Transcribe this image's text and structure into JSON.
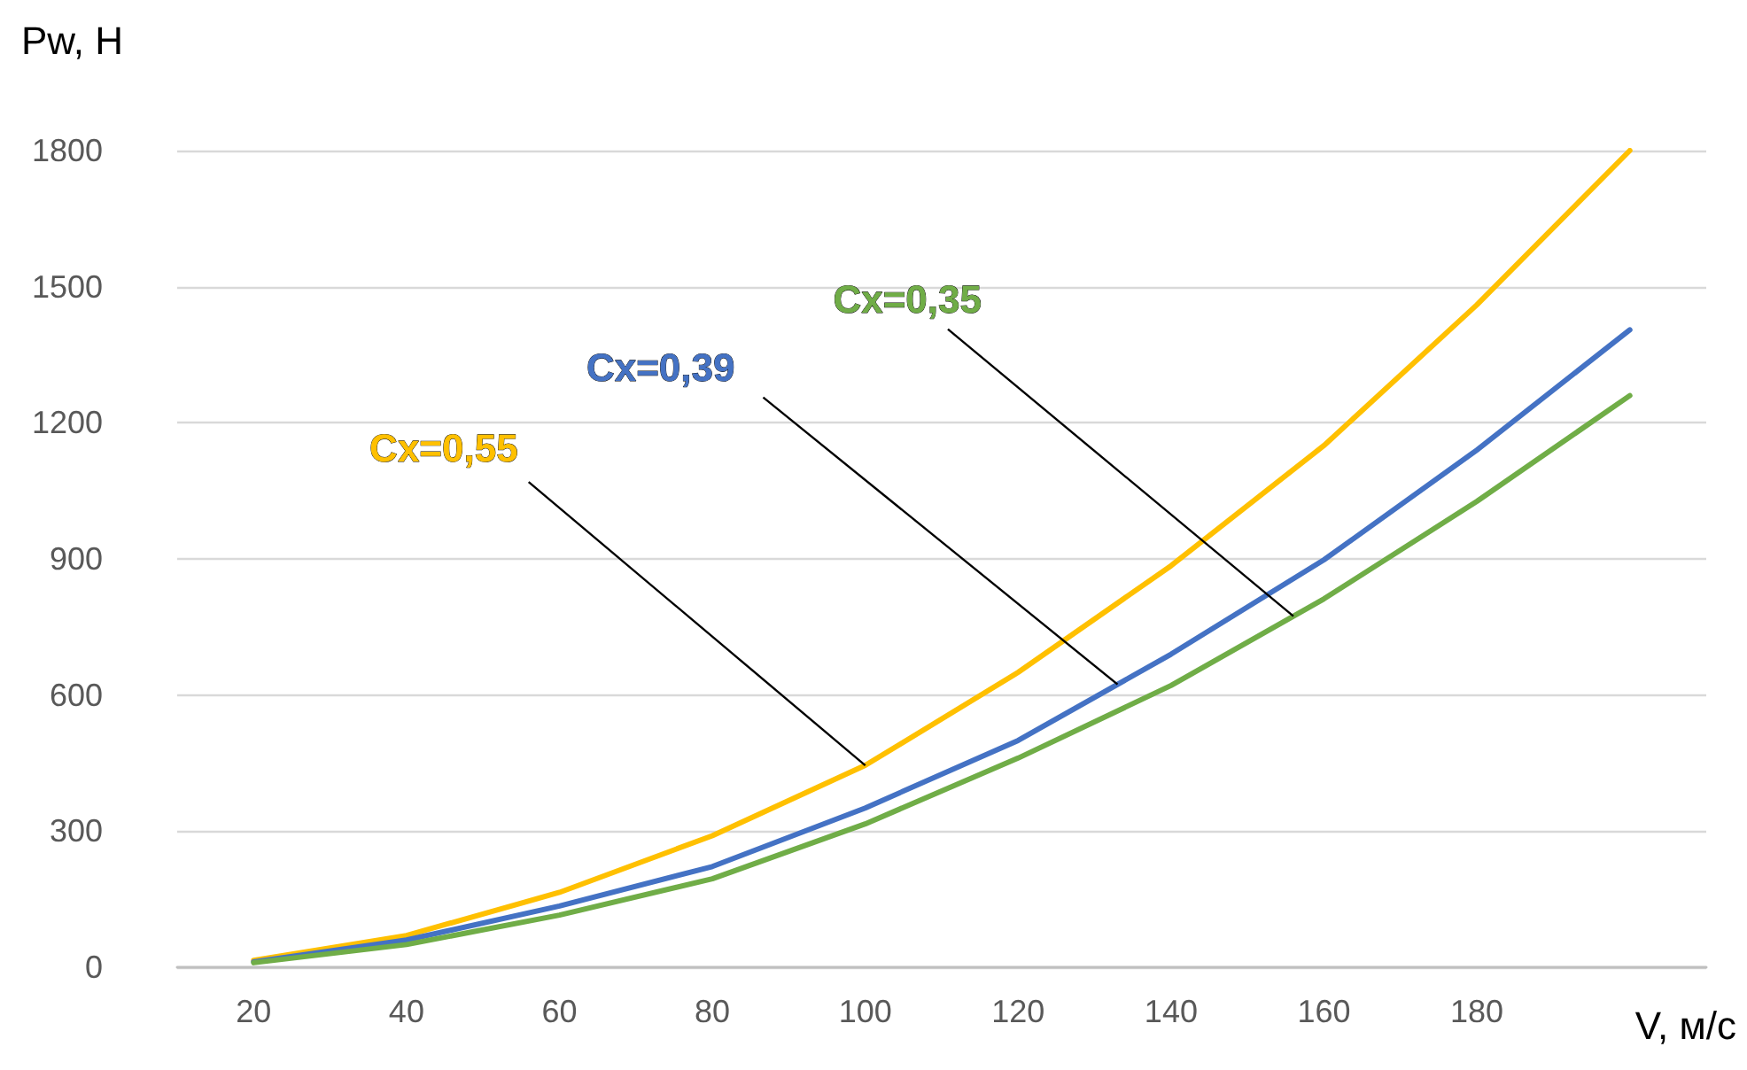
{
  "chart_data": {
    "type": "line",
    "xlabel": "V, м/с",
    "ylabel": "Pw, Н",
    "categories": [
      "20",
      "40",
      "60",
      "80",
      "100",
      "120",
      "140",
      "160",
      "180",
      null
    ],
    "series": [
      {
        "name": "Cx=0,55",
        "color": "#ffc000",
        "values": [
          15,
          70,
          165,
          290,
          445,
          650,
          885,
          1150,
          1460,
          1800
        ]
      },
      {
        "name": "Cx=0,39",
        "color": "#4472c4",
        "values": [
          12,
          60,
          135,
          222,
          351,
          500,
          690,
          898,
          1140,
          1405
        ]
      },
      {
        "name": "Cx=0,35",
        "color": "#70ad47",
        "values": [
          10,
          50,
          115,
          195,
          316,
          461,
          621,
          812,
          1027,
          1260
        ]
      }
    ],
    "ylim": [
      0,
      1800
    ],
    "yticks": [
      0,
      300,
      600,
      900,
      1200,
      1500,
      1800
    ],
    "grid": "y",
    "legend": false,
    "marker": "none",
    "line_style": "solid"
  }
}
